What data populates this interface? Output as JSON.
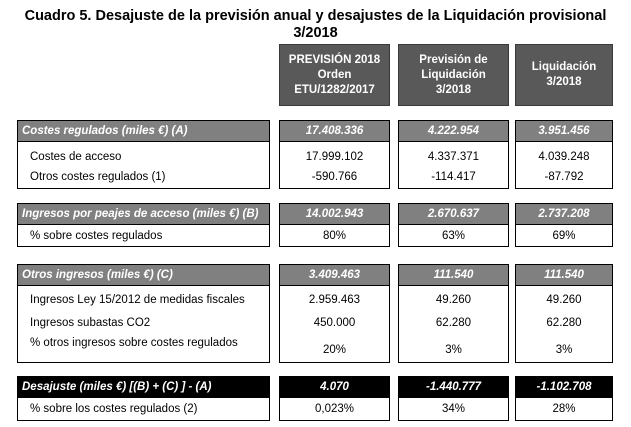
{
  "title_line1": "Cuadro 5. Desajuste de la previsión anual y desajustes de la Liquidación provisional",
  "title_line2": "3/2018",
  "columns": [
    [
      "PREVISIÓN 2018",
      "Orden",
      "ETU/1282/2017"
    ],
    [
      "Previsión de",
      "Liquidación",
      "3/2018"
    ],
    [
      "Liquidación",
      "3/2018"
    ]
  ],
  "sections": [
    {
      "header": {
        "label": "Costes regulados (miles €) (A)",
        "values": [
          "17.408.336",
          "4.222.954",
          "3.951.456"
        ]
      },
      "rows": [
        {
          "label": "Costes de acceso",
          "values": [
            "17.999.102",
            "4.337.371",
            "4.039.248"
          ]
        },
        {
          "label": "Otros costes regulados (1)",
          "values": [
            "-590.766",
            "-114.417",
            "-87.792"
          ]
        }
      ]
    },
    {
      "header": {
        "label": "Ingresos por peajes de acceso (miles €) (B)",
        "values": [
          "14.002.943",
          "2.670.637",
          "2.737.208"
        ]
      },
      "rows": [
        {
          "label": "% sobre costes regulados",
          "values": [
            "80%",
            "63%",
            "69%"
          ]
        }
      ]
    },
    {
      "header": {
        "label": "Otros ingresos (miles €) (C)",
        "values": [
          "3.409.463",
          "111.540",
          "111.540"
        ]
      },
      "rows": [
        {
          "label": "Ingresos Ley 15/2012 de medidas fiscales",
          "values": [
            "2.959.463",
            "49.260",
            "49.260"
          ]
        },
        {
          "label": "Ingresos subastas CO2",
          "values": [
            "450.000",
            "62.280",
            "62.280"
          ]
        },
        {
          "label": "% otros ingresos sobre costes regulados",
          "values": [
            "20%",
            "3%",
            "3%"
          ]
        }
      ]
    },
    {
      "header": {
        "label": "Desajuste (miles €) [(B) + (C) ] - (A)",
        "values": [
          "4.070",
          "-1.440.777",
          "-1.102.708"
        ]
      },
      "rows": [
        {
          "label": "% sobre los costes regulados (2)",
          "values": [
            "0,023%",
            "34%",
            "28%"
          ]
        }
      ]
    }
  ]
}
